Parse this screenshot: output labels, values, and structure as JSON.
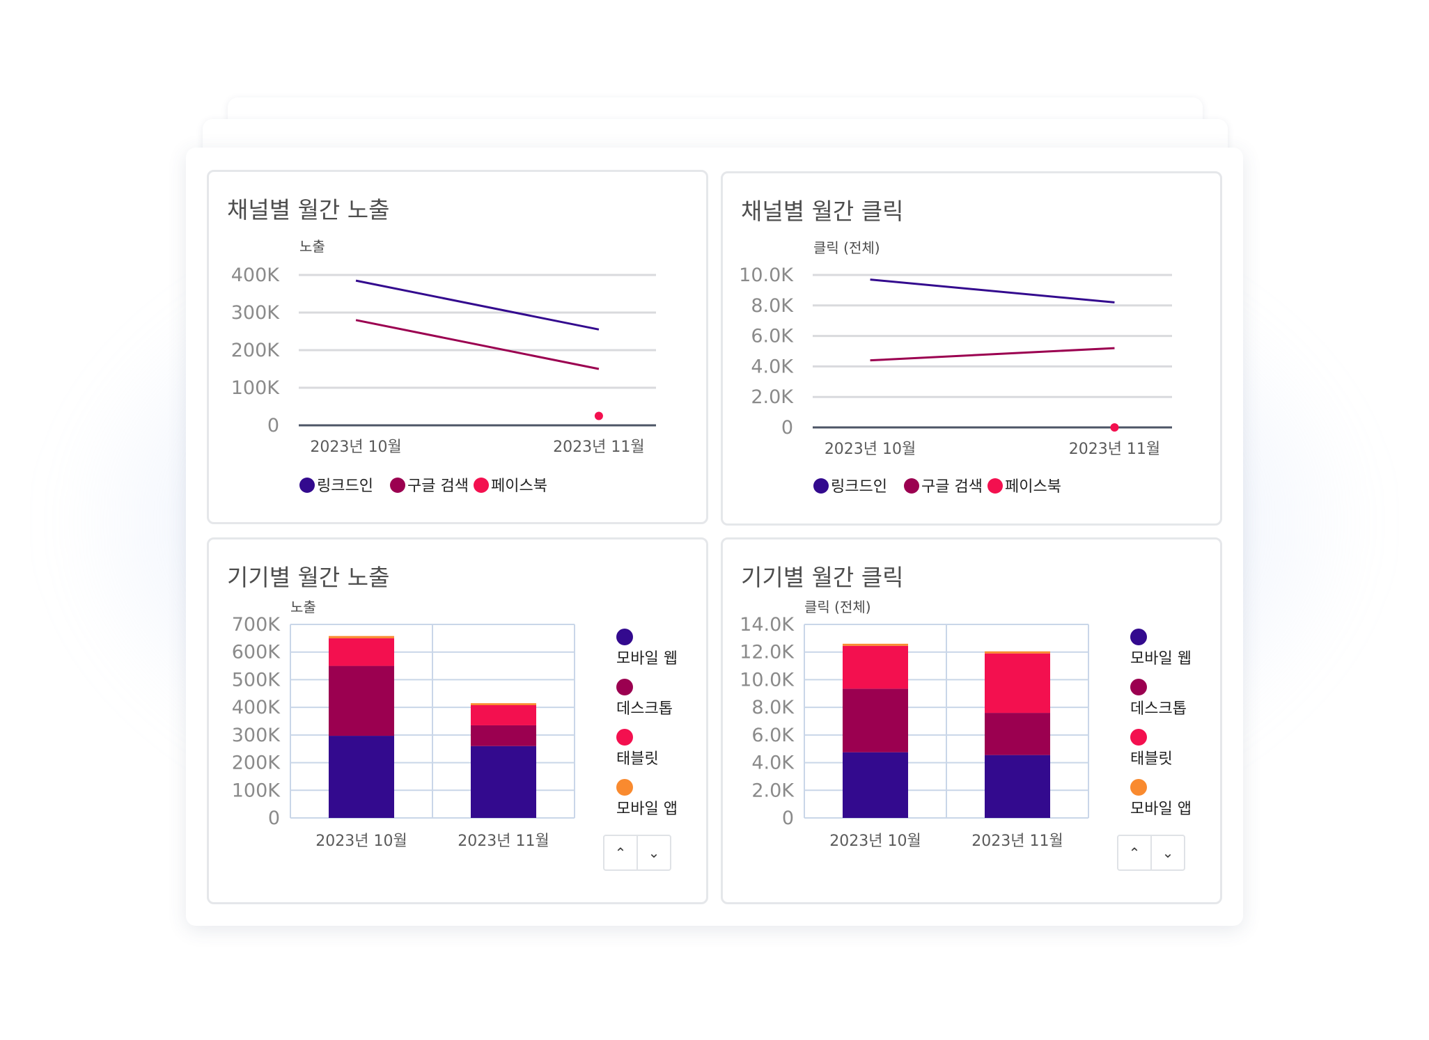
{
  "panels": {
    "channel_impressions_title": "채널별 월간 노출",
    "channel_clicks_title": "채널별 월간 클릭",
    "device_impressions_title": "기기별 월간 노출",
    "device_clicks_title": "기기별 월간 클릭"
  },
  "pager": {
    "up_icon": "chevron-up-icon",
    "down_icon": "chevron-down-icon",
    "up_glyph": "⌃",
    "down_glyph": "⌄"
  },
  "colors": {
    "linkedin": "#330a8e",
    "google": "#9b0050",
    "facebook": "#f3104f",
    "mobile_web": "#330a8e",
    "desktop": "#9b0050",
    "tablet": "#f3104f",
    "mobile_app": "#f98a2f"
  },
  "chart_data": [
    {
      "id": "channel-impressions",
      "type": "line",
      "ylabel": "노출",
      "categories": [
        "2023년 10월",
        "2023년 11월"
      ],
      "ylim": [
        0,
        400000
      ],
      "yticks": [
        "0",
        "100K",
        "200K",
        "300K",
        "400K"
      ],
      "grid": true,
      "legend_position": "bottom",
      "series": [
        {
          "name": "링크드인",
          "values": [
            385000,
            255000
          ],
          "color": "#330a8e"
        },
        {
          "name": "구글 검색",
          "values": [
            280000,
            150000
          ],
          "color": "#9b0050"
        },
        {
          "name": "페이스북",
          "values": [
            null,
            25000
          ],
          "color": "#f3104f"
        }
      ]
    },
    {
      "id": "channel-clicks",
      "type": "line",
      "ylabel": "클릭 (전체)",
      "categories": [
        "2023년 10월",
        "2023년 11월"
      ],
      "ylim": [
        0,
        10000
      ],
      "yticks": [
        "0",
        "2.0K",
        "4.0K",
        "6.0K",
        "8.0K",
        "10.0K"
      ],
      "grid": true,
      "legend_position": "bottom",
      "series": [
        {
          "name": "링크드인",
          "values": [
            9700,
            8200
          ],
          "color": "#330a8e"
        },
        {
          "name": "구글 검색",
          "values": [
            4400,
            5200
          ],
          "color": "#9b0050"
        },
        {
          "name": "페이스북",
          "values": [
            null,
            0
          ],
          "color": "#f3104f"
        }
      ]
    },
    {
      "id": "device-impressions",
      "type": "bar",
      "stacked": true,
      "ylabel": "노출",
      "categories": [
        "2023년 10월",
        "2023년 11월"
      ],
      "ylim": [
        0,
        700000
      ],
      "yticks": [
        "0",
        "100K",
        "200K",
        "300K",
        "400K",
        "500K",
        "600K",
        "700K"
      ],
      "grid": true,
      "legend_position": "right",
      "series": [
        {
          "name": "모바일 웹",
          "values": [
            297000,
            260000
          ],
          "color": "#330a8e"
        },
        {
          "name": "데스크톱",
          "values": [
            253000,
            75000
          ],
          "color": "#9b0050"
        },
        {
          "name": "태블릿",
          "values": [
            100000,
            73000
          ],
          "color": "#f3104f"
        },
        {
          "name": "모바일 앱",
          "values": [
            8000,
            7000
          ],
          "color": "#f98a2f"
        }
      ]
    },
    {
      "id": "device-clicks",
      "type": "bar",
      "stacked": true,
      "ylabel": "클릭 (전체)",
      "categories": [
        "2023년 10월",
        "2023년 11월"
      ],
      "ylim": [
        0,
        14000
      ],
      "yticks": [
        "0",
        "2.0K",
        "4.0K",
        "6.0K",
        "8.0K",
        "10.0K",
        "12.0K",
        "14.0K"
      ],
      "grid": true,
      "legend_position": "right",
      "series": [
        {
          "name": "모바일 웹",
          "values": [
            4750,
            4550
          ],
          "color": "#330a8e"
        },
        {
          "name": "데스크톱",
          "values": [
            4600,
            3050
          ],
          "color": "#9b0050"
        },
        {
          "name": "태블릿",
          "values": [
            3100,
            4300
          ],
          "color": "#f3104f"
        },
        {
          "name": "모바일 앱",
          "values": [
            150,
            150
          ],
          "color": "#f98a2f"
        }
      ]
    }
  ]
}
